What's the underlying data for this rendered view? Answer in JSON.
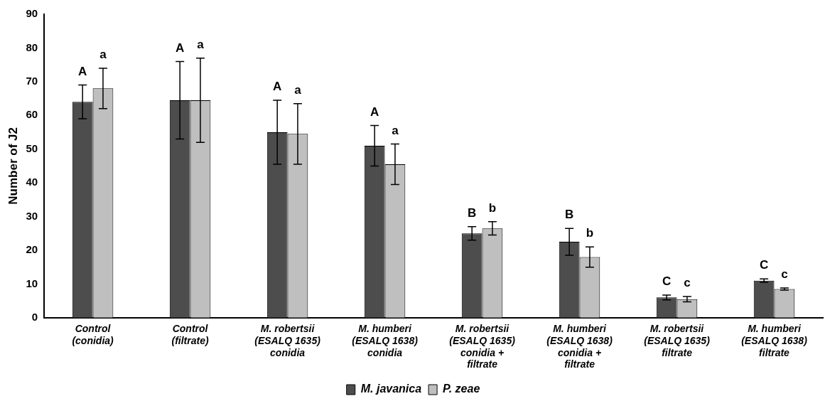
{
  "chart_data": {
    "type": "bar",
    "ylabel": "Number of J2",
    "categories": [
      "Control\n(conidia)",
      "Control\n(filtrate)",
      "M. robertsii\n(ESALQ 1635)\nconidia",
      "M. humberi\n(ESALQ 1638)\nconidia",
      "M. robertsii\n(ESALQ 1635)\nconidia +\nfiltrate",
      "M. humberi\n(ESALQ 1638)\nconidia +\nfiltrate",
      "M. robertsii\n(ESALQ 1635)\nfiltrate",
      "M. humberi\n(ESALQ 1638)\nfiltrate"
    ],
    "series": [
      {
        "name": "M. javanica",
        "color": "#4d4d4d",
        "values": [
          64,
          64.5,
          55,
          51,
          25,
          22.5,
          6,
          11
        ],
        "errors": [
          5,
          11.5,
          9.5,
          6,
          2,
          4,
          0.7,
          0.5
        ]
      },
      {
        "name": "P. zeae",
        "color": "#bfbfbf",
        "values": [
          68,
          64.5,
          54.5,
          45.5,
          26.5,
          18,
          5.5,
          8.5
        ],
        "errors": [
          6,
          12.5,
          9,
          6,
          2,
          3,
          0.8,
          0.3
        ]
      }
    ],
    "ylim": [
      0,
      90
    ],
    "yticks": [
      0,
      10,
      20,
      30,
      40,
      50,
      60,
      70,
      80,
      90
    ],
    "grid": false,
    "legend": "bottom",
    "annotations": [
      "A",
      "a",
      "A",
      "a",
      "A",
      "a",
      "A",
      "a",
      "B",
      "b",
      "B",
      "b",
      "C",
      "c",
      "C",
      "c"
    ]
  }
}
